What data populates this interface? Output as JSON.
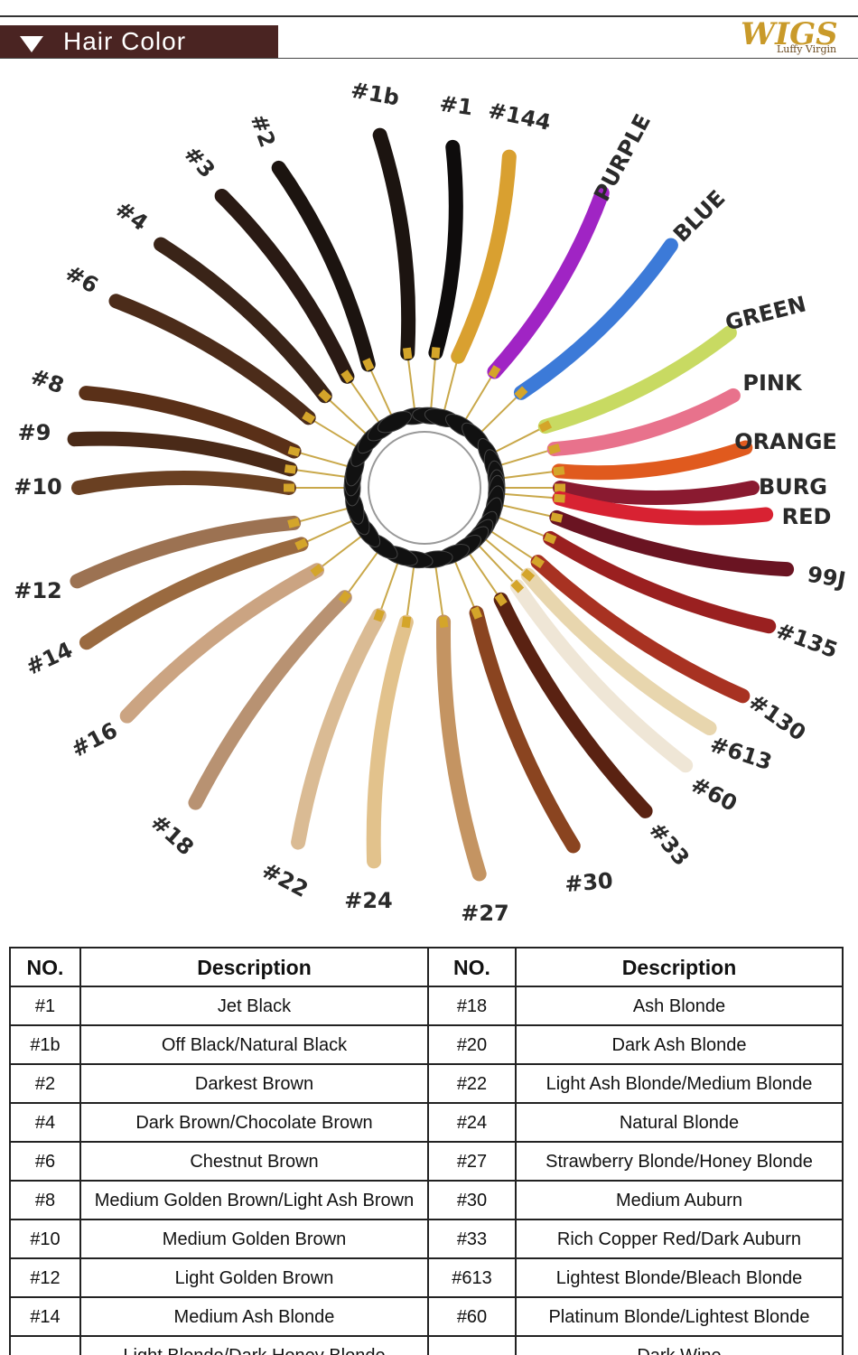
{
  "header": {
    "title": "Hair Color",
    "logo": "WIGS",
    "logo_sub": "Luffy Virgin"
  },
  "swatches": [
    {
      "label": "#1b",
      "color": "#1c1410"
    },
    {
      "label": "#1",
      "color": "#0e0c0c"
    },
    {
      "label": "#144",
      "color": "#d9a030"
    },
    {
      "label": "PURPLE",
      "color": "#a024c4"
    },
    {
      "label": "BLUE",
      "color": "#3c7ad8"
    },
    {
      "label": "GREEN",
      "color": "#c8da62"
    },
    {
      "label": "PINK",
      "color": "#e8728c"
    },
    {
      "label": "ORANGE",
      "color": "#e05a1e"
    },
    {
      "label": "BURG",
      "color": "#8a1a30"
    },
    {
      "label": "RED",
      "color": "#d82232"
    },
    {
      "label": "99J",
      "color": "#6a1422"
    },
    {
      "label": "#135",
      "color": "#9a2020"
    },
    {
      "label": "#130",
      "color": "#a83222"
    },
    {
      "label": "#613",
      "color": "#e8d6ae"
    },
    {
      "label": "#60",
      "color": "#efe6d6"
    },
    {
      "label": "#33",
      "color": "#5a2212"
    },
    {
      "label": "#30",
      "color": "#8a4420"
    },
    {
      "label": "#27",
      "color": "#c49462"
    },
    {
      "label": "#24",
      "color": "#e2c28c"
    },
    {
      "label": "#22",
      "color": "#dabb94"
    },
    {
      "label": "#18",
      "color": "#b89272"
    },
    {
      "label": "#16",
      "color": "#cba482"
    },
    {
      "label": "#14",
      "color": "#9a6a40"
    },
    {
      "label": "#12",
      "color": "#9c7252"
    },
    {
      "label": "#10",
      "color": "#6a4022"
    },
    {
      "label": "#9",
      "color": "#4a2a18"
    },
    {
      "label": "#8",
      "color": "#5a3018"
    },
    {
      "label": "#6",
      "color": "#4c2c1a"
    },
    {
      "label": "#4",
      "color": "#3a2418"
    },
    {
      "label": "#3",
      "color": "#2a1a14"
    },
    {
      "label": "#2",
      "color": "#1c1410"
    }
  ],
  "table": {
    "header": [
      "NO.",
      "Description",
      "NO.",
      "Description"
    ],
    "rows": [
      {
        "no1": "#1",
        "desc1": "Jet Black",
        "no2": "#18",
        "desc2": "Ash Blonde"
      },
      {
        "no1": "#1b",
        "desc1": "Off Black/Natural Black",
        "no2": "#20",
        "desc2": "Dark Ash Blonde"
      },
      {
        "no1": "#2",
        "desc1": "Darkest Brown",
        "no2": "#22",
        "desc2": "Light Ash Blonde/Medium Blonde"
      },
      {
        "no1": "#4",
        "desc1": "Dark Brown/Chocolate Brown",
        "no2": "#24",
        "desc2": "Natural Blonde"
      },
      {
        "no1": "#6",
        "desc1": "Chestnut Brown",
        "no2": "#27",
        "desc2": "Strawberry Blonde/Honey Blonde"
      },
      {
        "no1": "#8",
        "desc1": "Medium Golden Brown/Light Ash Brown",
        "no2": "#30",
        "desc2": "Medium Auburn"
      },
      {
        "no1": "#10",
        "desc1": "Medium Golden Brown",
        "no2": "#33",
        "desc2": "Rich Copper Red/Dark Auburn"
      },
      {
        "no1": "#12",
        "desc1": "Light Golden Brown",
        "no2": "#613",
        "desc2": "Lightest Blonde/Bleach Blonde"
      },
      {
        "no1": "#14",
        "desc1": "Medium Ash Blonde",
        "no2": "#60",
        "desc2": "Platinum Blonde/Lightest Blonde"
      },
      {
        "desc1": "Light Blonde/Dark Honey Blonde",
        "desc2": "Dark Wine"
      }
    ]
  }
}
